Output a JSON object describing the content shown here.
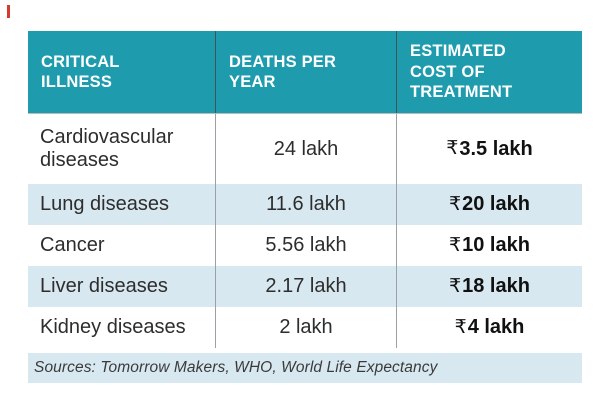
{
  "colors": {
    "header_bg": "#1e9cae",
    "row_alt_bg": "#d8e8f0",
    "marker_red": "#d23b2e"
  },
  "table": {
    "currency": "₹",
    "headers": [
      "CRITICAL\nILLNESS",
      "DEATHS PER\nYEAR",
      "ESTIMATED\nCOST OF\nTREATMENT"
    ],
    "rows": [
      {
        "illness": "Cardiovascular diseases",
        "deaths": "24 lakh",
        "cost": "3.5 lakh"
      },
      {
        "illness": "Lung diseases",
        "deaths": "11.6 lakh",
        "cost": "20 lakh"
      },
      {
        "illness": "Cancer",
        "deaths": "5.56 lakh",
        "cost": "10 lakh"
      },
      {
        "illness": "Liver diseases",
        "deaths": "2.17 lakh",
        "cost": "18 lakh"
      },
      {
        "illness": "Kidney diseases",
        "deaths": "2 lakh",
        "cost": "4 lakh"
      }
    ],
    "footer": "Sources: Tomorrow Makers, WHO, World Life Expectancy"
  },
  "chart_data": {
    "type": "table",
    "title": "",
    "columns": [
      "Critical illness",
      "Deaths per year",
      "Estimated cost of treatment"
    ],
    "rows": [
      [
        "Cardiovascular diseases",
        "24 lakh",
        "₹3.5 lakh"
      ],
      [
        "Lung diseases",
        "11.6 lakh",
        "₹20 lakh"
      ],
      [
        "Cancer",
        "5.56 lakh",
        "₹10 lakh"
      ],
      [
        "Liver diseases",
        "2.17 lakh",
        "₹18 lakh"
      ],
      [
        "Kidney diseases",
        "2 lakh",
        "₹4 lakh"
      ]
    ],
    "source_note": "Sources: Tomorrow Makers, WHO, World Life Expectancy"
  }
}
